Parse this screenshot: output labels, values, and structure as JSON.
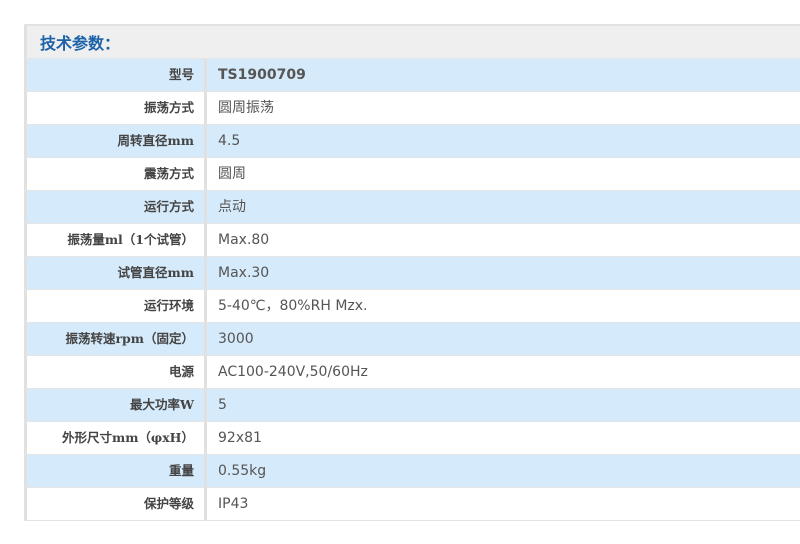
{
  "title": "技术参数：",
  "colors": {
    "title": "#1e63a8",
    "row_blue": "#d5eafa",
    "header_bg": "#efefef"
  },
  "rows": [
    {
      "label": "型号",
      "value": "TS1900709"
    },
    {
      "label": "振荡方式",
      "value": "圆周振荡"
    },
    {
      "label": "周转直径mm",
      "value": "4.5"
    },
    {
      "label": "震荡方式",
      "value": "圆周"
    },
    {
      "label": "运行方式",
      "value": "点动"
    },
    {
      "label": "振荡量ml（1个试管）",
      "value": "Max.80"
    },
    {
      "label": "试管直径mm",
      "value": "Max.30"
    },
    {
      "label": "运行环境",
      "value": "5-40℃，80%RH Mzx."
    },
    {
      "label": "振荡转速rpm（固定）",
      "value": "3000"
    },
    {
      "label": "电源",
      "value": "AC100-240V,50/60Hz"
    },
    {
      "label": "最大功率W",
      "value": "5"
    },
    {
      "label": "外形尺寸mm（φxH）",
      "value": "92x81"
    },
    {
      "label": "重量",
      "value": "0.55kg"
    },
    {
      "label": "保护等级",
      "value": "IP43"
    }
  ]
}
